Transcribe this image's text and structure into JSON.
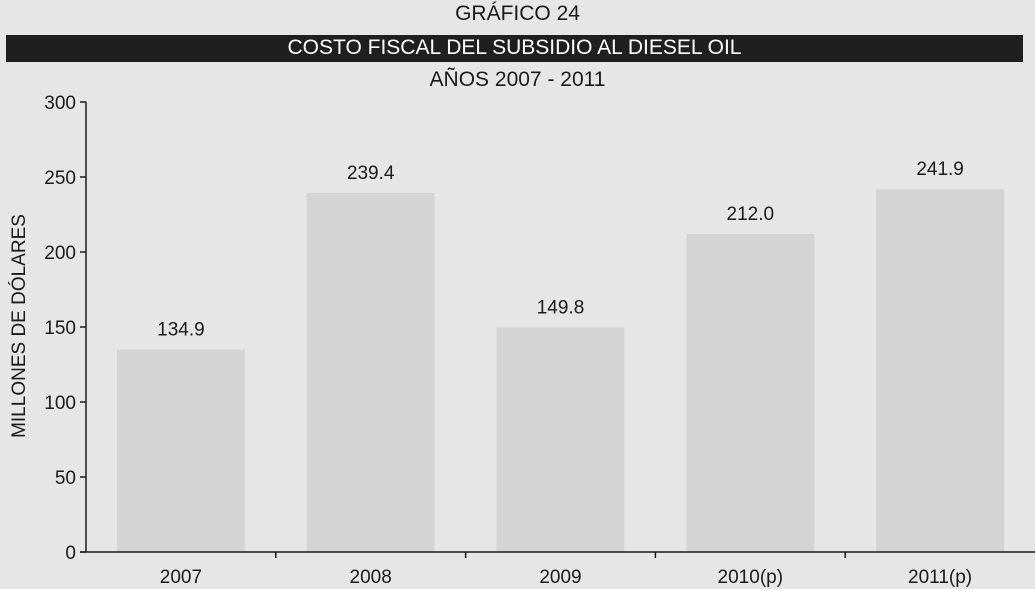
{
  "chart_data": {
    "type": "bar",
    "kicker": "GRÁFICO 24",
    "title": "COSTO FISCAL DEL SUBSIDIO AL DIESEL OIL",
    "subtitle": "AÑOS 2007 - 2011",
    "ylabel": "MILLONES DE DÓLARES",
    "xlabel": "",
    "categories": [
      "2007",
      "2008",
      "2009",
      "2010(p)",
      "2011(p)"
    ],
    "values": [
      134.9,
      239.4,
      149.8,
      212.0,
      241.9
    ],
    "value_labels": [
      "134.9",
      "239.4",
      "149.8",
      "212.0",
      "241.9"
    ],
    "ylim": [
      0,
      300
    ],
    "yticks": [
      0,
      50,
      100,
      150,
      200,
      250,
      300
    ],
    "grid": false,
    "bar_color": "#d4d4d4",
    "title_bar_color": "#1f1f1f"
  }
}
